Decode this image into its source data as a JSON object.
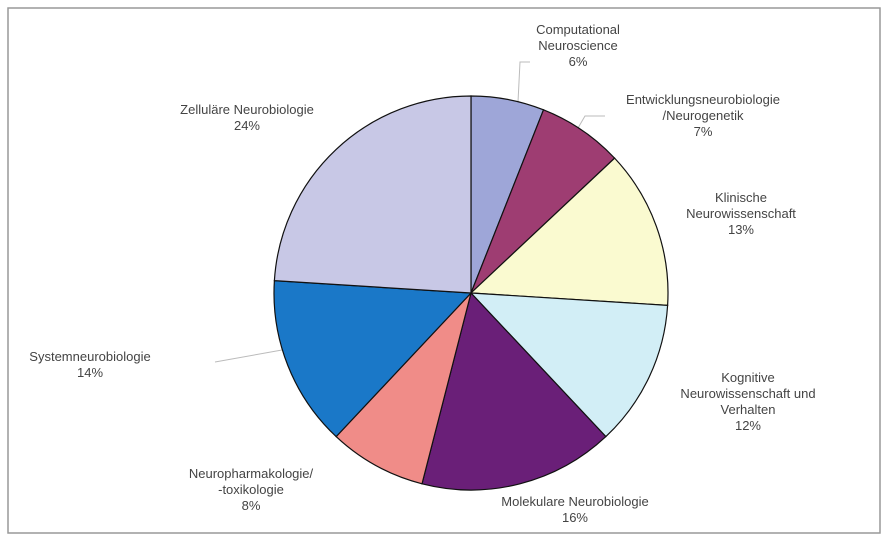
{
  "chart_data": {
    "type": "pie",
    "categories": [
      "Computational\nNeuroscience",
      "Entwicklungsneurobiologie\n/Neurogenetik",
      "Klinische\nNeurowissenschaft",
      "Kognitive\nNeurowissenschaft und\nVerhalten",
      "Molekulare Neurobiologie",
      "Neuropharmakologie/\n-toxikologie",
      "Systemneurobiologie",
      "Zelluläre Neurobiologie"
    ],
    "values": [
      6,
      7,
      13,
      12,
      16,
      8,
      14,
      24
    ],
    "value_labels": [
      "6%",
      "7%",
      "13%",
      "12%",
      "16%",
      "8%",
      "14%",
      "24%"
    ],
    "colors": [
      "#9ea6d8",
      "#9e3d72",
      "#fafad0",
      "#d2eef6",
      "#6a1f78",
      "#f08c88",
      "#1a78c8",
      "#c8c8e6"
    ]
  }
}
